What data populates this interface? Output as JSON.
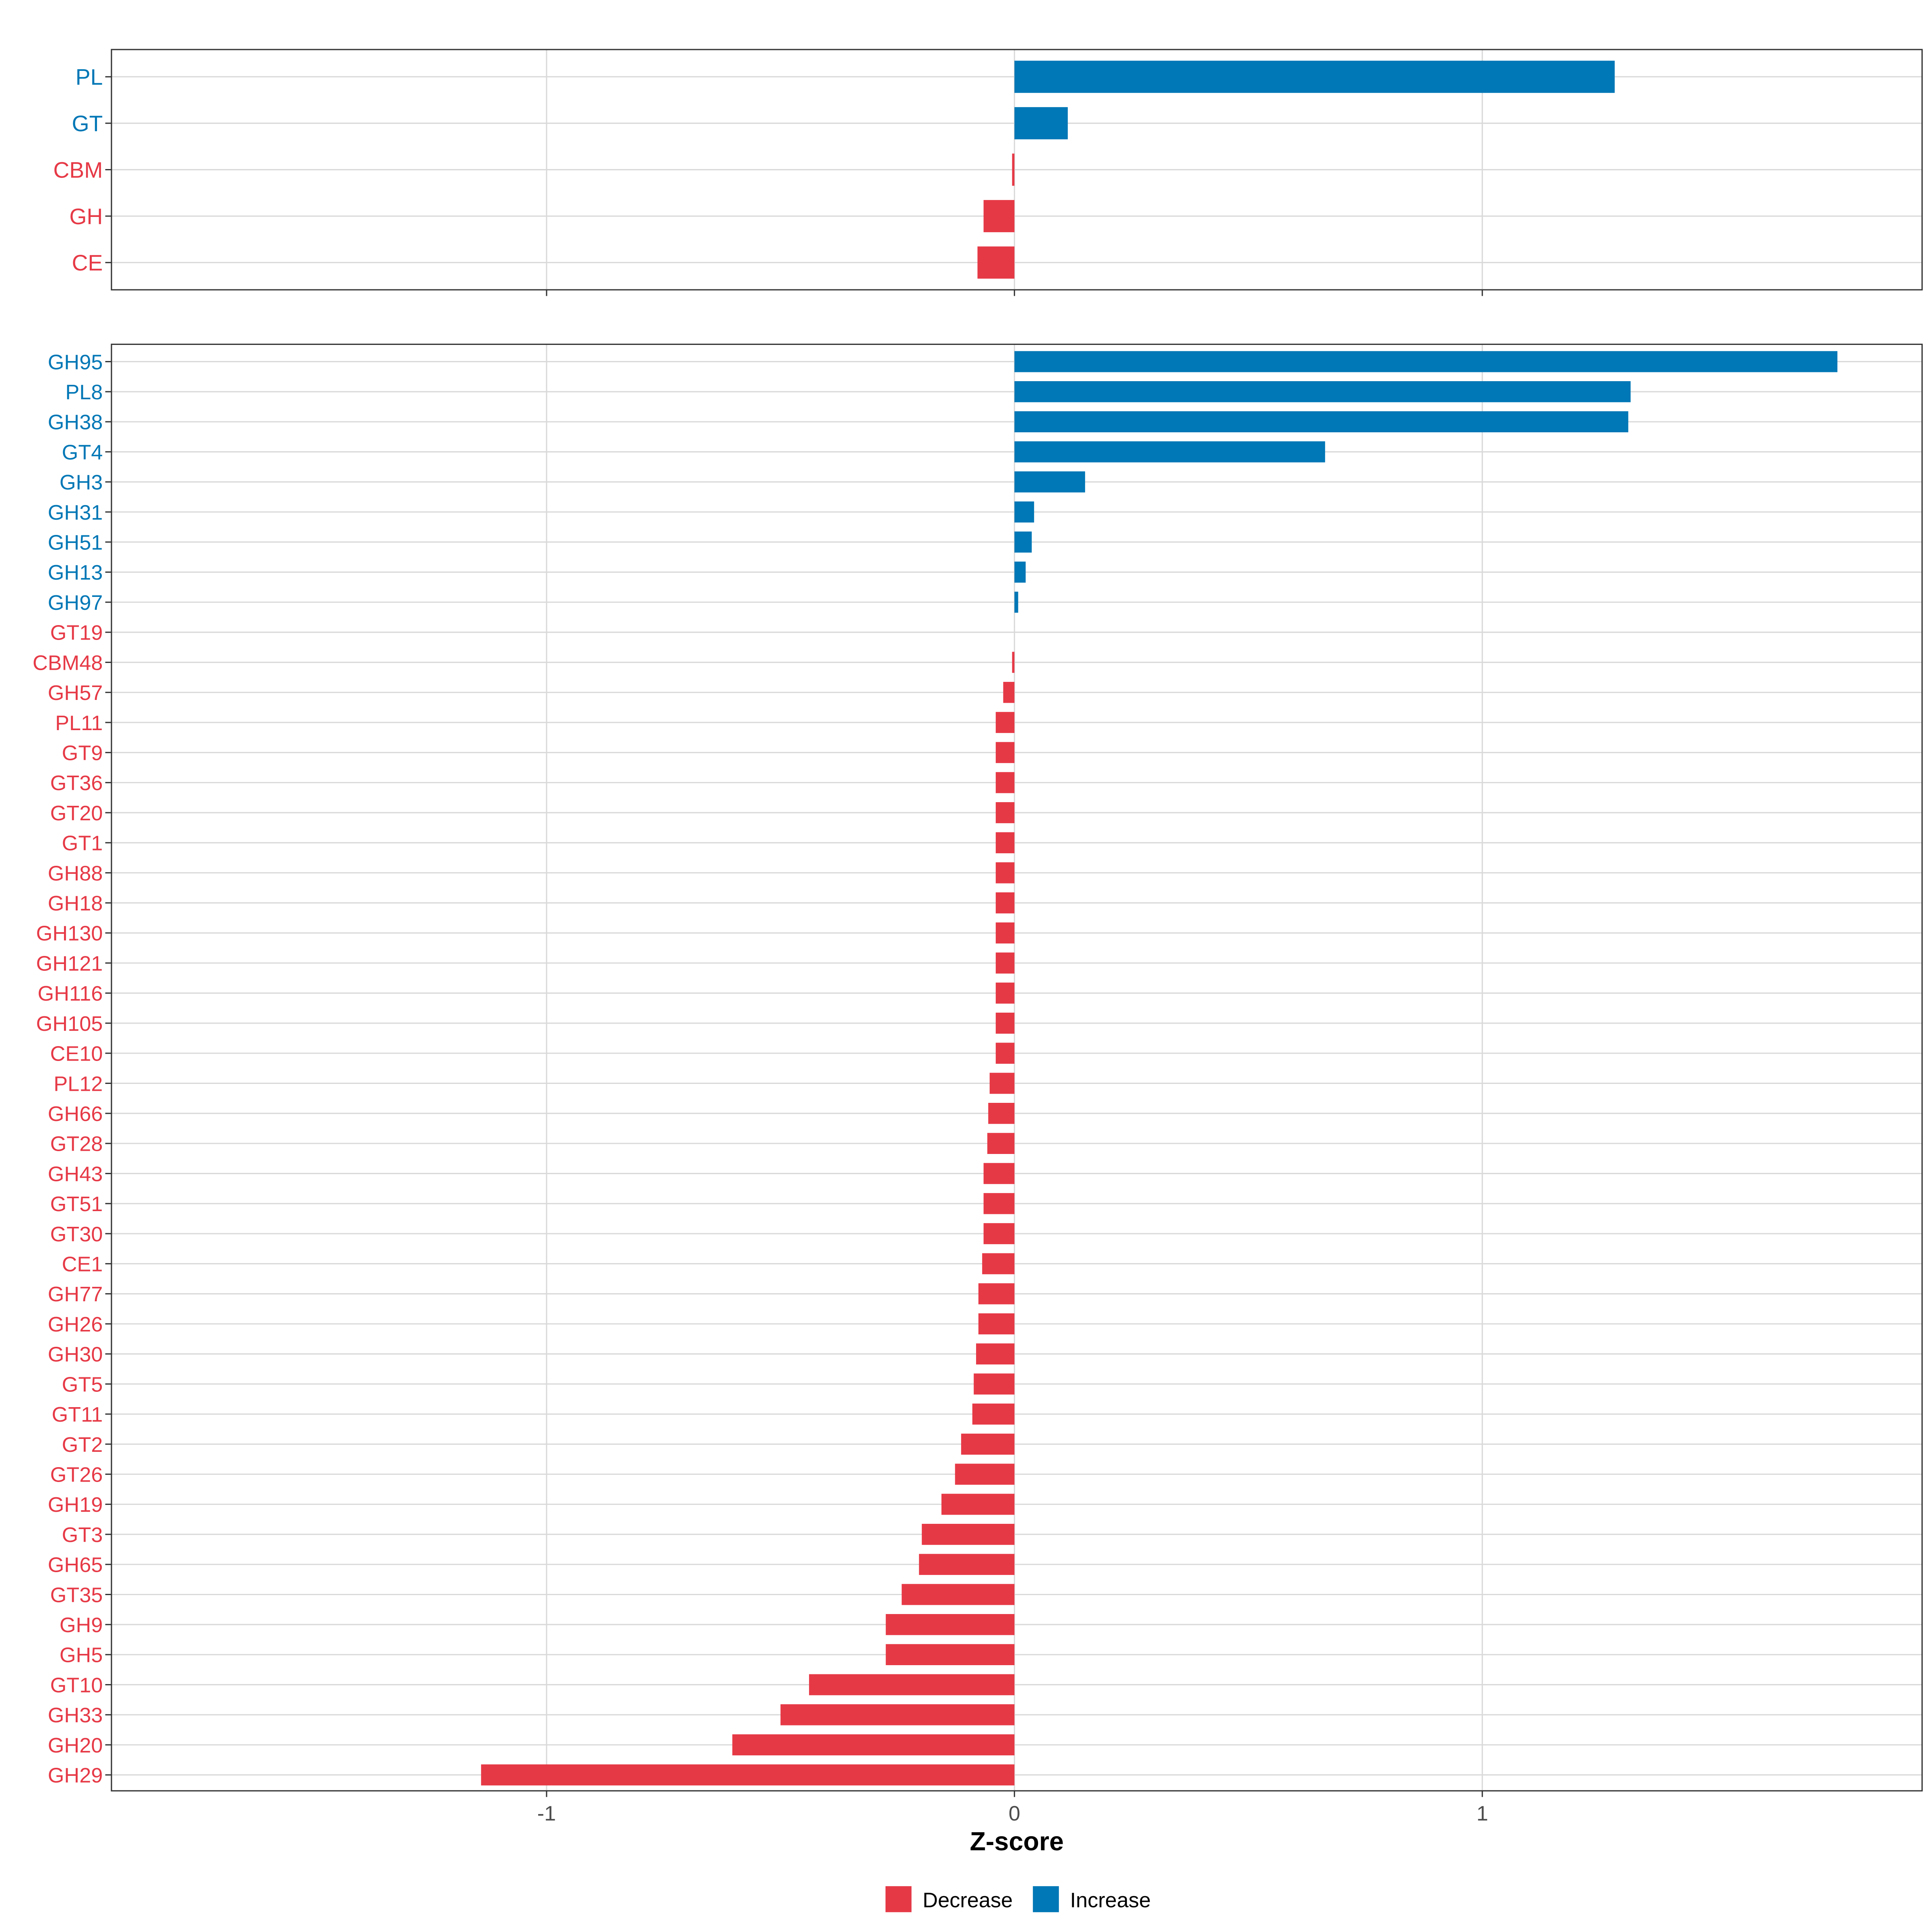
{
  "chart_data": [
    {
      "type": "bar",
      "orientation": "horizontal",
      "panel": "top",
      "categories": [
        "PL",
        "GT",
        "CBM",
        "GH",
        "CE"
      ],
      "values": [
        1.283,
        0.114,
        -0.005,
        -0.066,
        -0.079
      ],
      "xlim": [
        -1.93,
        1.94
      ]
    },
    {
      "type": "bar",
      "orientation": "horizontal",
      "panel": "bottom",
      "categories": [
        "GH95",
        "PL8",
        "GH38",
        "GT4",
        "GH3",
        "GH31",
        "GH51",
        "GH13",
        "GH97",
        "GT19",
        "CBM48",
        "GH57",
        "PL11",
        "GT9",
        "GT36",
        "GT20",
        "GT1",
        "GH88",
        "GH18",
        "GH130",
        "GH121",
        "GH116",
        "GH105",
        "CE10",
        "PL12",
        "GH66",
        "GT28",
        "GH43",
        "GT51",
        "GT30",
        "CE1",
        "GH77",
        "GH26",
        "GH30",
        "GT5",
        "GT11",
        "GT2",
        "GT26",
        "GH19",
        "GT3",
        "GH65",
        "GT35",
        "GH9",
        "GH5",
        "GT10",
        "GH33",
        "GH20",
        "GH29"
      ],
      "values": [
        1.759,
        1.317,
        1.312,
        0.664,
        0.151,
        0.042,
        0.037,
        0.024,
        0.008,
        0.0,
        -0.005,
        -0.024,
        -0.04,
        -0.04,
        -0.04,
        -0.04,
        -0.04,
        -0.04,
        -0.04,
        -0.04,
        -0.04,
        -0.04,
        -0.04,
        -0.04,
        -0.053,
        -0.056,
        -0.058,
        -0.066,
        -0.066,
        -0.066,
        -0.069,
        -0.077,
        -0.077,
        -0.082,
        -0.087,
        -0.09,
        -0.114,
        -0.127,
        -0.156,
        -0.198,
        -0.204,
        -0.241,
        -0.275,
        -0.275,
        -0.439,
        -0.5,
        -0.603,
        -1.14
      ],
      "xlim": [
        -1.93,
        1.94
      ]
    }
  ],
  "x_ticks": [
    -1,
    0,
    1
  ],
  "x_tick_labels": [
    "-1",
    "0",
    "1"
  ],
  "xlabel": "Z-score",
  "legend": {
    "placement": "bottom",
    "entries": [
      {
        "label": "Decrease",
        "color": "#E63946"
      },
      {
        "label": "Increase",
        "color": "#0077B6"
      }
    ]
  },
  "colors": {
    "increase": "#0077B6",
    "decrease": "#E63946",
    "grid": "#D9D9D9",
    "frame": "#333333"
  }
}
